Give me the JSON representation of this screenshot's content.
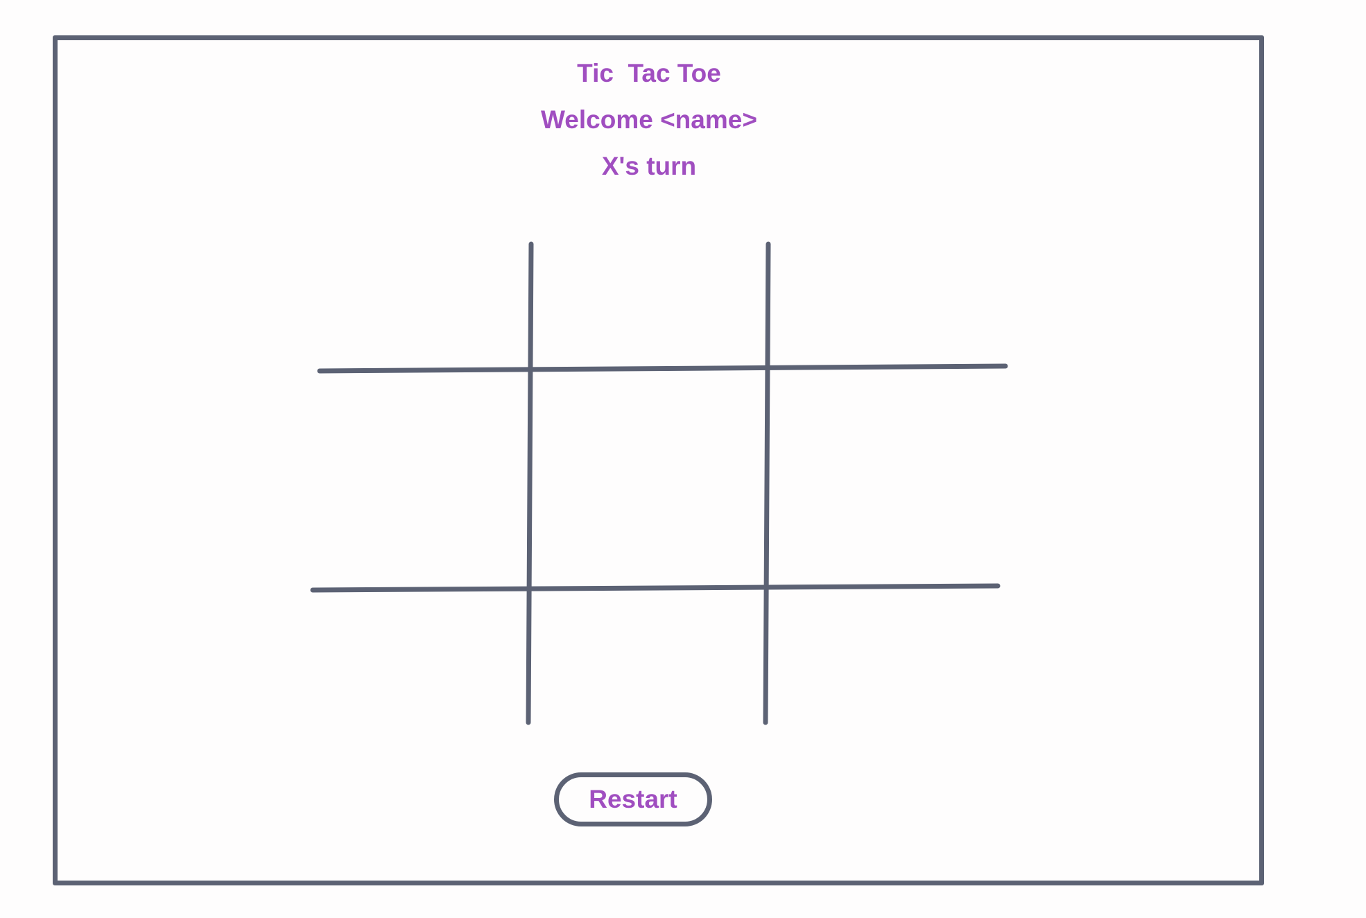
{
  "header": {
    "title": "Tic  Tac Toe",
    "welcome": "Welcome <name>",
    "turn": "X's turn"
  },
  "board": {
    "cells": [
      "",
      "",
      "",
      "",
      "",
      "",
      "",
      "",
      ""
    ]
  },
  "controls": {
    "restart_label": "Restart"
  },
  "colors": {
    "text_accent": "#a04ec0",
    "stroke": "#5c6274",
    "background": "#fefdfd"
  }
}
